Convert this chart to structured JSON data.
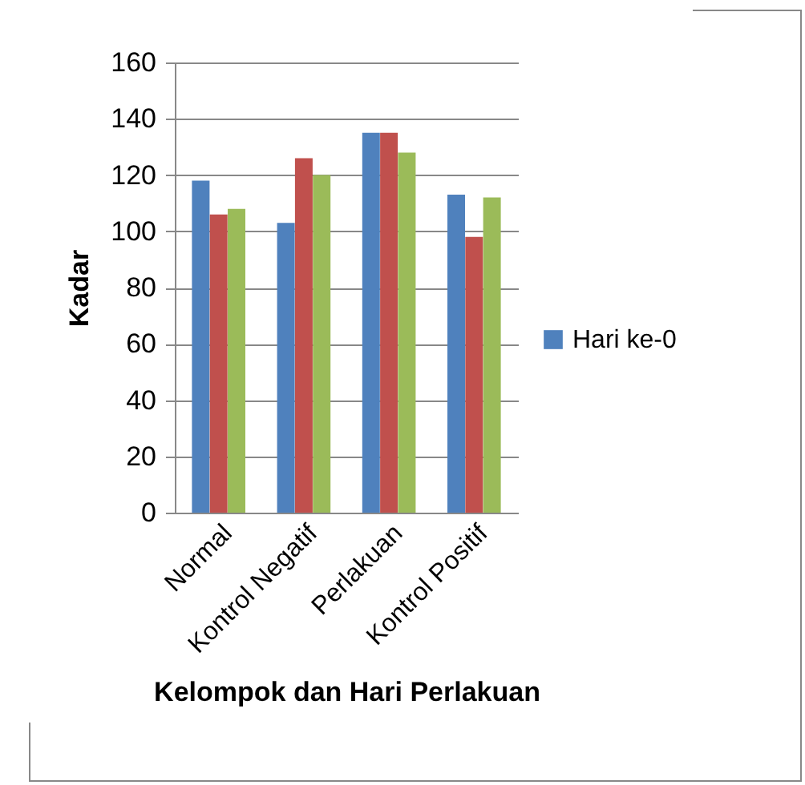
{
  "chart_data": {
    "type": "bar",
    "xlabel": "Kelompok dan Hari Perlakuan",
    "ylabel": "Kadar",
    "categories": [
      "Normal",
      "Kontrol Negatif",
      "Perlakuan",
      "Kontrol Positif"
    ],
    "series": [
      {
        "name": "Hari ke-0",
        "color": "#4f81bd",
        "values": [
          118,
          103,
          135,
          113
        ]
      },
      {
        "color": "#c0504d",
        "values": [
          106,
          126,
          135,
          98
        ]
      },
      {
        "color": "#9bbb59",
        "values": [
          108,
          120,
          128,
          112
        ]
      }
    ],
    "ylim": [
      0,
      160
    ],
    "yticks": [
      0,
      20,
      40,
      60,
      80,
      100,
      120,
      140,
      160
    ],
    "grid": "y",
    "legend": "right"
  }
}
